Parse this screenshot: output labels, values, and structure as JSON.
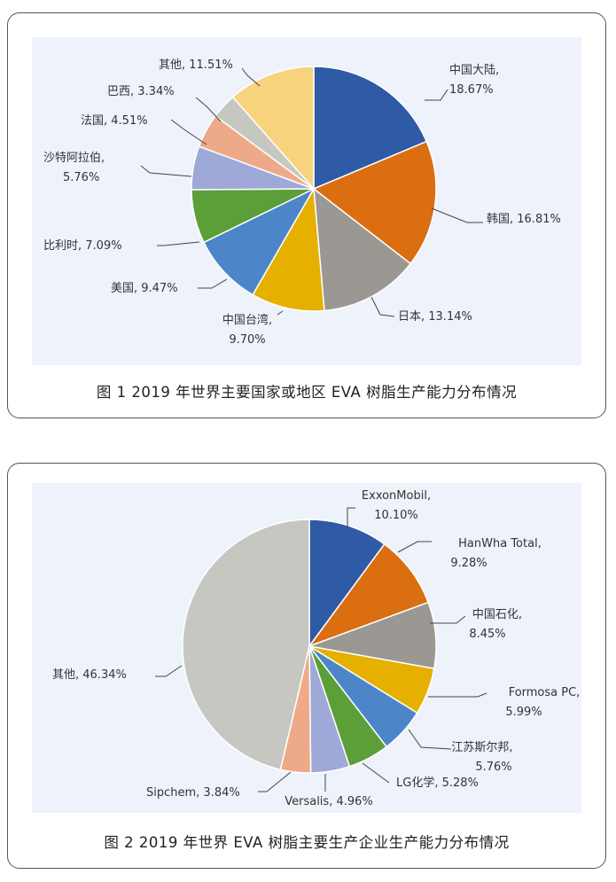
{
  "chart_data": [
    {
      "type": "pie",
      "caption": "图 1  2019 年世界主要国家或地区 EVA 树脂生产能力分布情况",
      "slices": [
        {
          "label": "中国大陆,",
          "value": 18.67,
          "pct_text": "18.67%",
          "color": "#2e5aa6"
        },
        {
          "label": "韩国,",
          "value": 16.81,
          "pct_text": "16.81%",
          "color": "#db6e11"
        },
        {
          "label": "日本,",
          "value": 13.14,
          "pct_text": "13.14%",
          "color": "#9b9893"
        },
        {
          "label": "中国台湾,",
          "value": 9.7,
          "pct_text": "9.70%",
          "color": "#e5b000"
        },
        {
          "label": "美国,",
          "value": 9.47,
          "pct_text": "9.47%",
          "color": "#4d86c8"
        },
        {
          "label": "比利时,",
          "value": 7.09,
          "pct_text": "7.09%",
          "color": "#5c9e37"
        },
        {
          "label": "沙特阿拉伯,",
          "value": 5.76,
          "pct_text": "5.76%",
          "color": "#9ea9d8"
        },
        {
          "label": "法国,",
          "value": 4.51,
          "pct_text": "4.51%",
          "color": "#eeaa88"
        },
        {
          "label": "巴西,",
          "value": 3.34,
          "pct_text": "3.34%",
          "color": "#c7c7c2"
        },
        {
          "label": "其他,",
          "value": 11.51,
          "pct_text": "11.51%",
          "color": "#f8d37e"
        }
      ]
    },
    {
      "type": "pie",
      "caption": "图 2  2019 年世界 EVA 树脂主要生产企业生产能力分布情况",
      "slices": [
        {
          "label": "ExxonMobil,",
          "value": 10.1,
          "pct_text": "10.10%",
          "color": "#2e5aa6"
        },
        {
          "label": "HanWha Total,",
          "value": 9.28,
          "pct_text": "9.28%",
          "color": "#db6e11"
        },
        {
          "label": "中国石化,",
          "value": 8.45,
          "pct_text": "8.45%",
          "color": "#9b9893"
        },
        {
          "label": "Formosa PC,",
          "value": 5.99,
          "pct_text": "5.99%",
          "color": "#e5b000"
        },
        {
          "label": "江苏斯尔邦,",
          "value": 5.76,
          "pct_text": "5.76%",
          "color": "#4d86c8"
        },
        {
          "label": "LG化学,",
          "value": 5.28,
          "pct_text": "5.28%",
          "color": "#5c9e37"
        },
        {
          "label": "Versalis,",
          "value": 4.96,
          "pct_text": "4.96%",
          "color": "#9ea9d8"
        },
        {
          "label": "Sipchem,",
          "value": 3.84,
          "pct_text": "3.84%",
          "color": "#eeaa88"
        },
        {
          "label": "其他,",
          "value": 46.34,
          "pct_text": "46.34%",
          "color": "#c7c7c2"
        }
      ]
    }
  ]
}
